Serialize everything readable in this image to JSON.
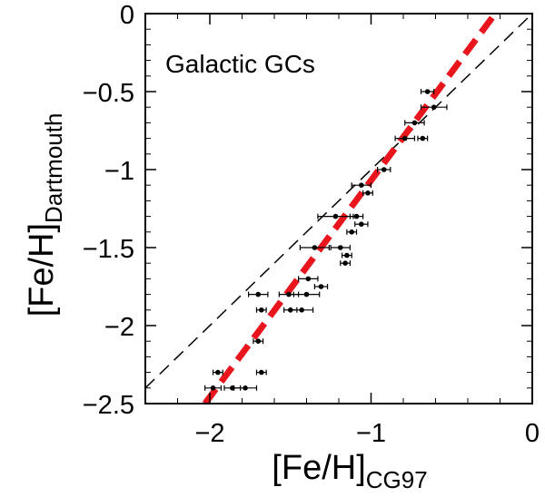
{
  "chart_data": {
    "type": "scatter",
    "title": "",
    "annotation": "Galactic GCs",
    "xlabel": {
      "main": "[Fe/H]",
      "sub": "CG97"
    },
    "ylabel": {
      "main": "[Fe/H]",
      "sub": "Dartmouth"
    },
    "xlim": [
      -2.4,
      0
    ],
    "ylim": [
      -2.5,
      0
    ],
    "x_ticks": [
      -2,
      -1,
      0
    ],
    "x_tick_labels": [
      "−2",
      "−1",
      "0"
    ],
    "y_ticks": [
      0,
      -0.5,
      -1,
      -1.5,
      -2,
      -2.5
    ],
    "y_tick_labels": [
      "0",
      "−0.5",
      "−1",
      "−1.5",
      "−2",
      "−2.5"
    ],
    "grid": false,
    "colors": {
      "fit_line": "#e8161c",
      "points": "#000000",
      "axes": "#000000"
    },
    "lines": [
      {
        "name": "one-to-one",
        "style": "dashed",
        "color": "#000000",
        "x": [
          -2.4,
          0
        ],
        "y": [
          -2.4,
          0
        ]
      },
      {
        "name": "fit",
        "style": "thick-dashed",
        "color": "#e8161c",
        "x": [
          -2.03,
          -0.23
        ],
        "y": [
          -2.5,
          0
        ]
      }
    ],
    "series": [
      {
        "name": "Galactic GCs",
        "points": [
          {
            "x": -0.65,
            "y": -0.5,
            "xerr": 0.04
          },
          {
            "x": -0.61,
            "y": -0.6,
            "xerr": 0.08
          },
          {
            "x": -0.73,
            "y": -0.7,
            "xerr": 0.06
          },
          {
            "x": -0.79,
            "y": -0.8,
            "xerr": 0.06
          },
          {
            "x": -0.68,
            "y": -0.8,
            "xerr": 0.03
          },
          {
            "x": -0.92,
            "y": -1.0,
            "xerr": 0.04
          },
          {
            "x": -1.06,
            "y": -1.1,
            "xerr": 0.06
          },
          {
            "x": -1.02,
            "y": -1.15,
            "xerr": 0.03
          },
          {
            "x": -1.22,
            "y": -1.3,
            "xerr": 0.11
          },
          {
            "x": -1.09,
            "y": -1.3,
            "xerr": 0.04
          },
          {
            "x": -1.06,
            "y": -1.35,
            "xerr": 0.04
          },
          {
            "x": -1.12,
            "y": -1.4,
            "xerr": 0.03
          },
          {
            "x": -1.35,
            "y": -1.5,
            "xerr": 0.09
          },
          {
            "x": -1.19,
            "y": -1.5,
            "xerr": 0.06
          },
          {
            "x": -1.15,
            "y": -1.55,
            "xerr": 0.03
          },
          {
            "x": -1.16,
            "y": -1.6,
            "xerr": 0.03
          },
          {
            "x": -1.39,
            "y": -1.7,
            "xerr": 0.06
          },
          {
            "x": -1.31,
            "y": -1.75,
            "xerr": 0.04
          },
          {
            "x": -1.7,
            "y": -1.8,
            "xerr": 0.06
          },
          {
            "x": -1.51,
            "y": -1.8,
            "xerr": 0.06
          },
          {
            "x": -1.4,
            "y": -1.8,
            "xerr": 0.08
          },
          {
            "x": -1.68,
            "y": -1.9,
            "xerr": 0.03
          },
          {
            "x": -1.5,
            "y": -1.9,
            "xerr": 0.04
          },
          {
            "x": -1.43,
            "y": -1.9,
            "xerr": 0.07
          },
          {
            "x": -1.7,
            "y": -2.1,
            "xerr": 0.03
          },
          {
            "x": -1.95,
            "y": -2.3,
            "xerr": 0.03
          },
          {
            "x": -1.68,
            "y": -2.3,
            "xerr": 0.03
          },
          {
            "x": -1.98,
            "y": -2.4,
            "xerr": 0.05
          },
          {
            "x": -1.86,
            "y": -2.4,
            "xerr": 0.05
          },
          {
            "x": -1.78,
            "y": -2.4,
            "xerr": 0.07
          }
        ]
      }
    ]
  }
}
